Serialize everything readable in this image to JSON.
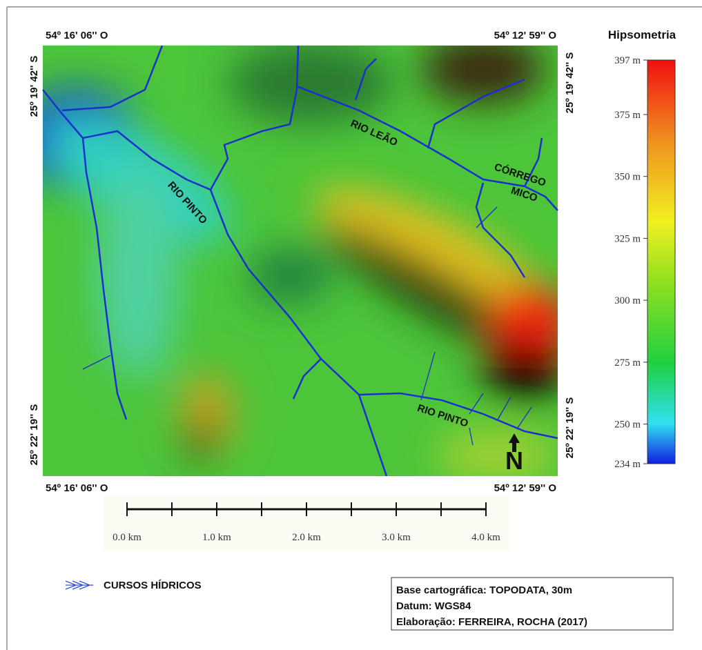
{
  "coordinates": {
    "top_left": "54º 16' 06'' O",
    "top_right": "54º 12' 59'' O",
    "bottom_left": "54º 16' 06'' O",
    "bottom_right": "54º 12' 59'' O",
    "left_top": "25º 19' 42'' S",
    "left_bottom": "25º 22' 19'' S",
    "right_top": "25º 19' 42'' S",
    "right_bottom": "25º 22' 19'' S"
  },
  "rivers": [
    "RIO LEÃO",
    "CÓRREGO",
    "MICO",
    "RIO PINTO",
    "RIO PINTO"
  ],
  "north": "N",
  "legend": {
    "title": "Hipsometria",
    "ticks": [
      {
        "value": 397,
        "label": "397 m"
      },
      {
        "value": 375,
        "label": "375 m"
      },
      {
        "value": 350,
        "label": "350 m"
      },
      {
        "value": 325,
        "label": "325 m"
      },
      {
        "value": 300,
        "label": "300 m"
      },
      {
        "value": 275,
        "label": "275 m"
      },
      {
        "value": 250,
        "label": "250 m"
      },
      {
        "value": 234,
        "label": "234 m"
      }
    ]
  },
  "scale_bar": {
    "labels": [
      "0.0 km",
      "1.0 km",
      "2.0 km",
      "3.0 km",
      "4.0 km"
    ]
  },
  "key": "CURSOS HÍDRICOS",
  "credits": [
    "Base cartográfica: TOPODATA, 30m",
    "Datum: WGS84",
    "Elaboração: FERREIRA, ROCHA (2017)"
  ]
}
